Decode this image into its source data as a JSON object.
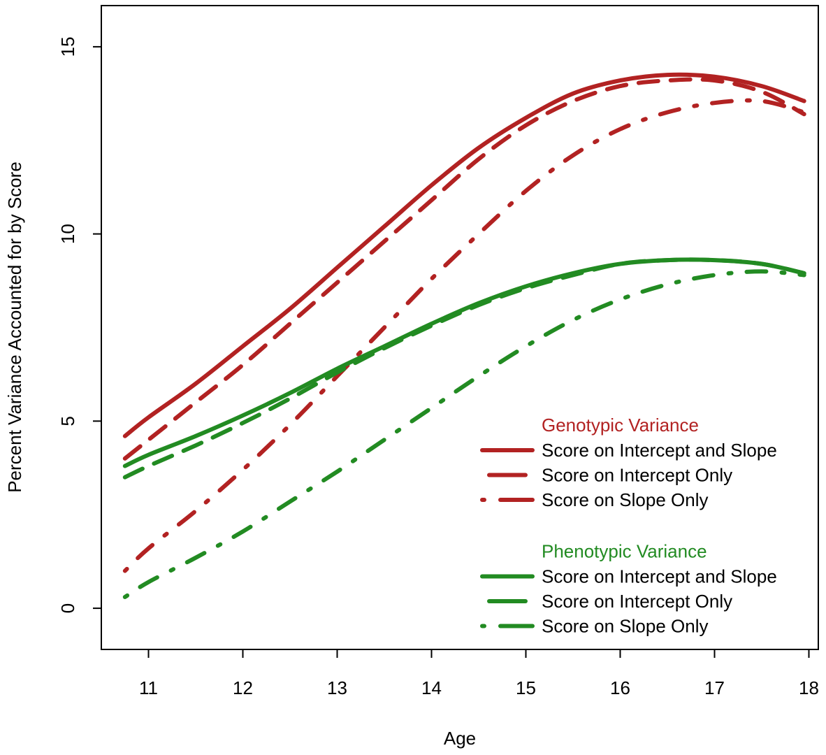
{
  "chart_data": {
    "type": "line",
    "title": "",
    "xlabel": "Age",
    "ylabel": "Percent Variance Accounted for by Score",
    "xlim": [
      10.5,
      18.1
    ],
    "ylim": [
      -1.1,
      16.1
    ],
    "x_ticks": [
      11,
      12,
      13,
      14,
      15,
      16,
      17,
      18
    ],
    "y_ticks": [
      0,
      5,
      10,
      15
    ],
    "x_tick_labels": [
      "11",
      "12",
      "13",
      "14",
      "15",
      "16",
      "17",
      "18"
    ],
    "y_tick_labels": [
      "0",
      "5",
      "10",
      "15"
    ],
    "grid": false,
    "legend_position": "bottom-right",
    "colors": {
      "genotypic": "#b22222",
      "phenotypic": "#228b22"
    },
    "legend_groups": [
      {
        "title": "Genotypic Variance",
        "color": "#b22222",
        "entries": [
          {
            "label": "Score on Intercept and Slope",
            "style": "solid"
          },
          {
            "label": "Score on Intercept Only",
            "style": "dashed"
          },
          {
            "label": "Score on Slope Only",
            "style": "dotdash"
          }
        ]
      },
      {
        "title": "Phenotypic Variance",
        "color": "#228b22",
        "entries": [
          {
            "label": "Score on Intercept and Slope",
            "style": "solid"
          },
          {
            "label": "Score on Intercept Only",
            "style": "dashed"
          },
          {
            "label": "Score on Slope Only",
            "style": "dotdash"
          }
        ]
      }
    ],
    "series": [
      {
        "group": "Genotypic Variance",
        "name": "Score on Intercept and Slope",
        "color": "#b22222",
        "style": "solid",
        "x": [
          10.75,
          11.0,
          11.5,
          12.0,
          12.5,
          13.0,
          13.5,
          14.0,
          14.5,
          15.0,
          15.5,
          16.0,
          16.5,
          17.0,
          17.5,
          17.95
        ],
        "y": [
          4.6,
          5.1,
          6.0,
          7.0,
          8.0,
          9.1,
          10.2,
          11.3,
          12.3,
          13.1,
          13.75,
          14.1,
          14.25,
          14.2,
          13.95,
          13.55
        ]
      },
      {
        "group": "Genotypic Variance",
        "name": "Score on Intercept Only",
        "color": "#b22222",
        "style": "dashed",
        "x": [
          10.75,
          11.0,
          11.5,
          12.0,
          12.5,
          13.0,
          13.5,
          14.0,
          14.5,
          15.0,
          15.5,
          16.0,
          16.5,
          17.0,
          17.5,
          17.95
        ],
        "y": [
          4.0,
          4.5,
          5.5,
          6.5,
          7.6,
          8.7,
          9.8,
          10.9,
          12.0,
          12.9,
          13.55,
          13.95,
          14.1,
          14.1,
          13.8,
          13.2
        ]
      },
      {
        "group": "Genotypic Variance",
        "name": "Score on Slope Only",
        "color": "#b22222",
        "style": "dotdash",
        "x": [
          10.75,
          11.0,
          11.5,
          12.0,
          12.5,
          13.0,
          13.5,
          14.0,
          14.5,
          15.0,
          15.5,
          16.0,
          16.5,
          17.0,
          17.5,
          17.95
        ],
        "y": [
          1.0,
          1.6,
          2.6,
          3.7,
          4.9,
          6.2,
          7.5,
          8.8,
          10.0,
          11.15,
          12.1,
          12.8,
          13.25,
          13.5,
          13.55,
          13.25
        ]
      },
      {
        "group": "Phenotypic Variance",
        "name": "Score on Intercept and Slope",
        "color": "#228b22",
        "style": "solid",
        "x": [
          10.75,
          11.0,
          11.5,
          12.0,
          12.5,
          13.0,
          13.5,
          14.0,
          14.5,
          15.0,
          15.5,
          16.0,
          16.5,
          17.0,
          17.5,
          17.95
        ],
        "y": [
          3.8,
          4.1,
          4.6,
          5.15,
          5.75,
          6.4,
          7.0,
          7.6,
          8.15,
          8.6,
          8.95,
          9.2,
          9.3,
          9.3,
          9.2,
          8.95
        ]
      },
      {
        "group": "Phenotypic Variance",
        "name": "Score on Intercept Only",
        "color": "#228b22",
        "style": "dashed",
        "x": [
          10.75,
          11.0,
          11.5,
          12.0,
          12.5,
          13.0,
          13.5,
          14.0,
          14.5,
          15.0,
          15.5,
          16.0,
          16.5,
          17.0,
          17.5,
          17.95
        ],
        "y": [
          3.5,
          3.8,
          4.35,
          4.95,
          5.6,
          6.3,
          6.95,
          7.55,
          8.1,
          8.55,
          8.9,
          9.2,
          9.3,
          9.3,
          9.2,
          8.95
        ]
      },
      {
        "group": "Phenotypic Variance",
        "name": "Score on Slope Only",
        "color": "#228b22",
        "style": "dotdash",
        "x": [
          10.75,
          11.0,
          11.5,
          12.0,
          12.5,
          13.0,
          13.5,
          14.0,
          14.5,
          15.0,
          15.5,
          16.0,
          16.5,
          17.0,
          17.5,
          17.95
        ],
        "y": [
          0.3,
          0.7,
          1.35,
          2.05,
          2.85,
          3.65,
          4.5,
          5.35,
          6.2,
          7.0,
          7.7,
          8.25,
          8.65,
          8.9,
          9.0,
          8.9
        ]
      }
    ]
  }
}
